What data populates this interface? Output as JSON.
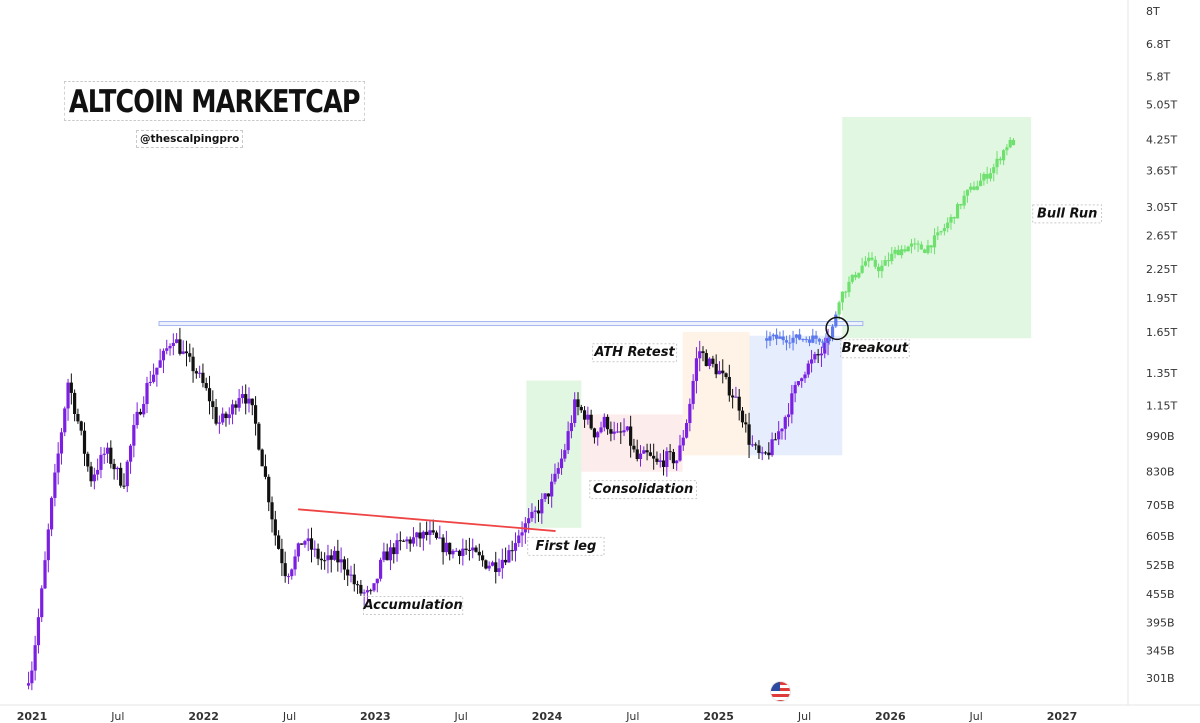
{
  "title": "ALTCOIN MARKETCAP",
  "handle": "@thescalpingpro",
  "chart_data": {
    "type": "candlestick",
    "yscale": "log",
    "ylim_usd": [
      280000000000.0,
      8200000000000.0
    ],
    "y_ticks": [
      {
        "label": "8T",
        "value": 8000000000000.0
      },
      {
        "label": "6.8T",
        "value": 6800000000000.0
      },
      {
        "label": "5.8T",
        "value": 5800000000000.0
      },
      {
        "label": "5.05T",
        "value": 5050000000000.0
      },
      {
        "label": "4.25T",
        "value": 4250000000000.0
      },
      {
        "label": "3.65T",
        "value": 3650000000000.0
      },
      {
        "label": "3.05T",
        "value": 3050000000000.0
      },
      {
        "label": "2.65T",
        "value": 2650000000000.0
      },
      {
        "label": "2.25T",
        "value": 2250000000000.0
      },
      {
        "label": "1.95T",
        "value": 1950000000000.0
      },
      {
        "label": "1.65T",
        "value": 1650000000000.0
      },
      {
        "label": "1.35T",
        "value": 1350000000000.0
      },
      {
        "label": "1.15T",
        "value": 1150000000000.0
      },
      {
        "label": "990B",
        "value": 990000000000.0
      },
      {
        "label": "830B",
        "value": 830000000000.0
      },
      {
        "label": "705B",
        "value": 705000000000.0
      },
      {
        "label": "605B",
        "value": 605000000000.0
      },
      {
        "label": "525B",
        "value": 525000000000.0
      },
      {
        "label": "455B",
        "value": 455000000000.0
      },
      {
        "label": "395B",
        "value": 395000000000.0
      },
      {
        "label": "345B",
        "value": 345000000000.0
      },
      {
        "label": "301B",
        "value": 301000000000.0
      }
    ],
    "x_ticks": [
      {
        "label": "2021",
        "value": 2021.0,
        "bold": true
      },
      {
        "label": "Jul",
        "value": 2021.5
      },
      {
        "label": "2022",
        "value": 2022.0,
        "bold": true
      },
      {
        "label": "Jul",
        "value": 2022.5
      },
      {
        "label": "2023",
        "value": 2023.0,
        "bold": true
      },
      {
        "label": "Jul",
        "value": 2023.5
      },
      {
        "label": "2024",
        "value": 2024.0,
        "bold": true
      },
      {
        "label": "Jul",
        "value": 2024.5
      },
      {
        "label": "2025",
        "value": 2025.0,
        "bold": true
      },
      {
        "label": "Jul",
        "value": 2025.5
      },
      {
        "label": "2026",
        "value": 2026.0,
        "bold": true
      },
      {
        "label": "Jul",
        "value": 2026.5
      },
      {
        "label": "2027",
        "value": 2027.0,
        "bold": true
      }
    ],
    "xlim": [
      2020.94,
      2027.3
    ],
    "series_path": [
      [
        2020.98,
        290000000000.0
      ],
      [
        2021.02,
        320000000000.0
      ],
      [
        2021.08,
        470000000000.0
      ],
      [
        2021.13,
        700000000000.0
      ],
      [
        2021.18,
        950000000000.0
      ],
      [
        2021.23,
        1300000000000.0
      ],
      [
        2021.29,
        1050000000000.0
      ],
      [
        2021.36,
        800000000000.0
      ],
      [
        2021.45,
        920000000000.0
      ],
      [
        2021.55,
        780000000000.0
      ],
      [
        2021.62,
        1050000000000.0
      ],
      [
        2021.7,
        1300000000000.0
      ],
      [
        2021.78,
        1450000000000.0
      ],
      [
        2021.84,
        1620000000000.0
      ],
      [
        2021.9,
        1480000000000.0
      ],
      [
        2021.98,
        1350000000000.0
      ],
      [
        2022.05,
        1200000000000.0
      ],
      [
        2022.1,
        1050000000000.0
      ],
      [
        2022.17,
        1100000000000.0
      ],
      [
        2022.24,
        1250000000000.0
      ],
      [
        2022.31,
        1100000000000.0
      ],
      [
        2022.38,
        800000000000.0
      ],
      [
        2022.44,
        600000000000.0
      ],
      [
        2022.5,
        500000000000.0
      ],
      [
        2022.55,
        540000000000.0
      ],
      [
        2022.6,
        600000000000.0
      ],
      [
        2022.66,
        560000000000.0
      ],
      [
        2022.72,
        530000000000.0
      ],
      [
        2022.78,
        545000000000.0
      ],
      [
        2022.85,
        520000000000.0
      ],
      [
        2022.92,
        460000000000.0
      ],
      [
        2023.0,
        450000000000.0
      ],
      [
        2023.06,
        540000000000.0
      ],
      [
        2023.13,
        570000000000.0
      ],
      [
        2023.2,
        590000000000.0
      ],
      [
        2023.27,
        600000000000.0
      ],
      [
        2023.33,
        610000000000.0
      ],
      [
        2023.4,
        580000000000.0
      ],
      [
        2023.47,
        560000000000.0
      ],
      [
        2023.53,
        570000000000.0
      ],
      [
        2023.6,
        550000000000.0
      ],
      [
        2023.66,
        530000000000.0
      ],
      [
        2023.72,
        525000000000.0
      ],
      [
        2023.8,
        560000000000.0
      ],
      [
        2023.86,
        620000000000.0
      ],
      [
        2023.92,
        650000000000.0
      ],
      [
        2024.0,
        720000000000.0
      ],
      [
        2024.06,
        790000000000.0
      ],
      [
        2024.12,
        920000000000.0
      ],
      [
        2024.18,
        1150000000000.0
      ],
      [
        2024.24,
        1100000000000.0
      ],
      [
        2024.3,
        1000000000000.0
      ],
      [
        2024.36,
        1070000000000.0
      ],
      [
        2024.42,
        980000000000.0
      ],
      [
        2024.48,
        1020000000000.0
      ],
      [
        2024.54,
        880000000000.0
      ],
      [
        2024.6,
        900000000000.0
      ],
      [
        2024.66,
        860000000000.0
      ],
      [
        2024.72,
        890000000000.0
      ],
      [
        2024.78,
        880000000000.0
      ],
      [
        2024.84,
        1100000000000.0
      ],
      [
        2024.9,
        1520000000000.0
      ],
      [
        2024.96,
        1420000000000.0
      ],
      [
        2025.02,
        1360000000000.0
      ],
      [
        2025.08,
        1250000000000.0
      ],
      [
        2025.14,
        1150000000000.0
      ],
      [
        2025.2,
        960000000000.0
      ],
      [
        2025.27,
        880000000000.0
      ],
      [
        2025.33,
        940000000000.0
      ],
      [
        2025.39,
        1050000000000.0
      ],
      [
        2025.45,
        1200000000000.0
      ],
      [
        2025.5,
        1350000000000.0
      ],
      [
        2025.56,
        1420000000000.0
      ],
      [
        2025.61,
        1480000000000.0
      ],
      [
        2025.65,
        1550000000000.0
      ]
    ],
    "projection_path": [
      [
        2025.67,
        1600000000000.0
      ],
      [
        2025.72,
        1950000000000.0
      ],
      [
        2025.8,
        2150000000000.0
      ],
      [
        2025.88,
        2350000000000.0
      ],
      [
        2025.96,
        2250000000000.0
      ],
      [
        2026.05,
        2450000000000.0
      ],
      [
        2026.14,
        2520000000000.0
      ],
      [
        2026.22,
        2480000000000.0
      ],
      [
        2026.3,
        2650000000000.0
      ],
      [
        2026.38,
        2900000000000.0
      ],
      [
        2026.46,
        3250000000000.0
      ],
      [
        2026.54,
        3450000000000.0
      ],
      [
        2026.62,
        3700000000000.0
      ],
      [
        2026.7,
        4150000000000.0
      ],
      [
        2026.73,
        4200000000000.0
      ]
    ],
    "resistance_level": {
      "value": 1720000000000.0,
      "x_start": 2021.74,
      "x_end": 2025.84
    },
    "trendline": {
      "x_start": 2022.55,
      "y_start": 690000000000.0,
      "x_end": 2024.05,
      "y_end": 620000000000.0
    },
    "zones": [
      {
        "name": "first-leg-zone",
        "x0": 2023.88,
        "x1": 2024.2,
        "y0": 630000000000.0,
        "y1": 1300000000000.0,
        "color": "#1bc41b"
      },
      {
        "name": "consolidation-zone",
        "x0": 2024.2,
        "x1": 2024.79,
        "y0": 830000000000.0,
        "y1": 1100000000000.0,
        "color": "#ef6b6b"
      },
      {
        "name": "ath-retest-zone",
        "x0": 2024.79,
        "x1": 2025.18,
        "y0": 900000000000.0,
        "y1": 1650000000000.0,
        "color": "#f5a341"
      },
      {
        "name": "breakout-zone",
        "x0": 2025.18,
        "x1": 2025.72,
        "y0": 900000000000.0,
        "y1": 1620000000000.0,
        "color": "#3d7af5"
      },
      {
        "name": "bull-run-zone",
        "x0": 2025.72,
        "x1": 2026.82,
        "y0": 1600000000000.0,
        "y1": 4750000000000.0,
        "color": "#1bc41b"
      }
    ],
    "annotations": [
      {
        "name": "accumulation-label",
        "text": "Accumulation",
        "x": 2023.22,
        "y": 430000000000.0
      },
      {
        "name": "first-leg-label",
        "text": "First leg",
        "x": 2024.11,
        "y": 575000000000.0
      },
      {
        "name": "consolidation-label",
        "text": "Consolidation",
        "x": 2024.56,
        "y": 760000000000.0
      },
      {
        "name": "ath-retest-label",
        "text": "ATH Retest",
        "x": 2024.51,
        "y": 1490000000000.0
      },
      {
        "name": "breakout-label",
        "text": "Breakout",
        "x": 2025.91,
        "y": 1520000000000.0
      },
      {
        "name": "bull-run-label",
        "text": "Bull Run",
        "x": 2027.03,
        "y": 2950000000000.0
      }
    ],
    "breakout_point": {
      "x": 2025.69,
      "y": 1680000000000.0
    },
    "colors": {
      "bull_candle": "#7b1fe0",
      "bear_candle": "#111111",
      "projection_blue": "#5b78ee",
      "projection_green": "#6ee06e",
      "trendline": "#ef4444",
      "resistance": "#a3b6f0"
    }
  }
}
